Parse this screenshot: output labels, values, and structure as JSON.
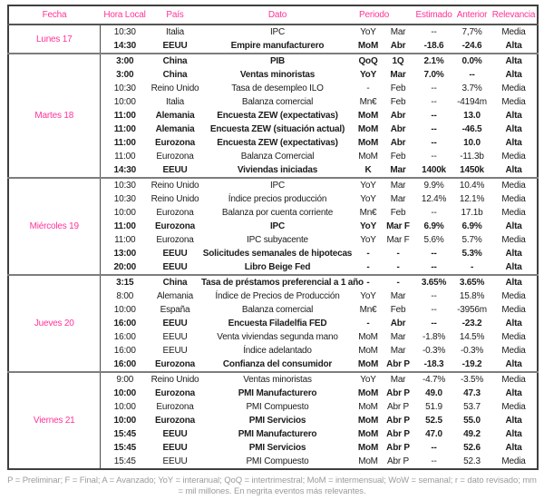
{
  "colors": {
    "accent_pink": "#ff3399",
    "outer_border": "#3f3f3f",
    "group_separator": "#7d7d7d",
    "footnote_gray": "#9b9b9b"
  },
  "header": {
    "fecha": "Fecha",
    "hora": "Hora Local",
    "pais": "País",
    "dato": "Dato",
    "periodo": "Periodo",
    "estimado": "Estimado",
    "anterior": "Anterior",
    "relevancia": "Relevancia"
  },
  "groups": [
    {
      "day": "Lunes 17",
      "rows": [
        {
          "hora": "10:30",
          "pais": "Italia",
          "dato": "IPC",
          "periodo": "YoY",
          "mes": "Mar",
          "estimado": "--",
          "anterior": "7,7%",
          "relevancia": "Media",
          "bold": false
        },
        {
          "hora": "14:30",
          "pais": "EEUU",
          "dato": "Empire manufacturero",
          "periodo": "MoM",
          "mes": "Abr",
          "estimado": "-18.6",
          "anterior": "-24.6",
          "relevancia": "Alta",
          "bold": true
        }
      ]
    },
    {
      "day": "Martes 18",
      "rows": [
        {
          "hora": "3:00",
          "pais": "China",
          "dato": "PIB",
          "periodo": "QoQ",
          "mes": "1Q",
          "estimado": "2.1%",
          "anterior": "0.0%",
          "relevancia": "Alta",
          "bold": true
        },
        {
          "hora": "3:00",
          "pais": "China",
          "dato": "Ventas minoristas",
          "periodo": "YoY",
          "mes": "Mar",
          "estimado": "7.0%",
          "anterior": "--",
          "relevancia": "Alta",
          "bold": true
        },
        {
          "hora": "10:30",
          "pais": "Reino Unido",
          "dato": "Tasa de desempleo ILO",
          "periodo": "-",
          "mes": "Feb",
          "estimado": "--",
          "anterior": "3.7%",
          "relevancia": "Media",
          "bold": false
        },
        {
          "hora": "10:00",
          "pais": "Italia",
          "dato": "Balanza comercial",
          "periodo": "Mn€",
          "mes": "Feb",
          "estimado": "--",
          "anterior": "-4194m",
          "relevancia": "Media",
          "bold": false
        },
        {
          "hora": "11:00",
          "pais": "Alemania",
          "dato": "Encuesta ZEW (expectativas)",
          "periodo": "MoM",
          "mes": "Abr",
          "estimado": "--",
          "anterior": "13.0",
          "relevancia": "Alta",
          "bold": true
        },
        {
          "hora": "11:00",
          "pais": "Alemania",
          "dato": "Encuesta ZEW (situación actual)",
          "periodo": "MoM",
          "mes": "Abr",
          "estimado": "--",
          "anterior": "-46.5",
          "relevancia": "Alta",
          "bold": true
        },
        {
          "hora": "11:00",
          "pais": "Eurozona",
          "dato": "Encuesta ZEW (expectativas)",
          "periodo": "MoM",
          "mes": "Abr",
          "estimado": "--",
          "anterior": "10.0",
          "relevancia": "Alta",
          "bold": true
        },
        {
          "hora": "11:00",
          "pais": "Eurozona",
          "dato": "Balanza Comercial",
          "periodo": "MoM",
          "mes": "Feb",
          "estimado": "--",
          "anterior": "-11.3b",
          "relevancia": "Media",
          "bold": false
        },
        {
          "hora": "14:30",
          "pais": "EEUU",
          "dato": "Viviendas iniciadas",
          "periodo": "K",
          "mes": "Mar",
          "estimado": "1400k",
          "anterior": "1450k",
          "relevancia": "Alta",
          "bold": true
        }
      ]
    },
    {
      "day": "Miércoles 19",
      "rows": [
        {
          "hora": "10:30",
          "pais": "Reino Unido",
          "dato": "IPC",
          "periodo": "YoY",
          "mes": "Mar",
          "estimado": "9.9%",
          "anterior": "10.4%",
          "relevancia": "Media",
          "bold": false
        },
        {
          "hora": "10:30",
          "pais": "Reino Unido",
          "dato": "Índice precios producción",
          "periodo": "YoY",
          "mes": "Mar",
          "estimado": "12.4%",
          "anterior": "12.1%",
          "relevancia": "Media",
          "bold": false
        },
        {
          "hora": "10:00",
          "pais": "Eurozona",
          "dato": "Balanza por cuenta corriente",
          "periodo": "Mn€",
          "mes": "Feb",
          "estimado": "--",
          "anterior": "17.1b",
          "relevancia": "Media",
          "bold": false
        },
        {
          "hora": "11:00",
          "pais": "Eurozona",
          "dato": "IPC",
          "periodo": "YoY",
          "mes": "Mar F",
          "estimado": "6.9%",
          "anterior": "6.9%",
          "relevancia": "Alta",
          "bold": true
        },
        {
          "hora": "11:00",
          "pais": "Eurozona",
          "dato": "IPC subyacente",
          "periodo": "YoY",
          "mes": "Mar F",
          "estimado": "5.6%",
          "anterior": "5.7%",
          "relevancia": "Media",
          "bold": false
        },
        {
          "hora": "13:00",
          "pais": "EEUU",
          "dato": "Solicitudes semanales de hipotecas",
          "periodo": "-",
          "mes": "-",
          "estimado": "--",
          "anterior": "5.3%",
          "relevancia": "Alta",
          "bold": true
        },
        {
          "hora": "20:00",
          "pais": "EEUU",
          "dato": "Libro Beige Fed",
          "periodo": "-",
          "mes": "-",
          "estimado": "--",
          "anterior": "-",
          "relevancia": "Alta",
          "bold": true
        }
      ]
    },
    {
      "day": "Jueves 20",
      "rows": [
        {
          "hora": "3:15",
          "pais": "China",
          "dato": "Tasa de préstamos preferencial a 1 año",
          "periodo": "-",
          "mes": "-",
          "estimado": "3.65%",
          "anterior": "3.65%",
          "relevancia": "Alta",
          "bold": true
        },
        {
          "hora": "8:00",
          "pais": "Alemania",
          "dato": "Índice de Precios de Producción",
          "periodo": "YoY",
          "mes": "Mar",
          "estimado": "--",
          "anterior": "15.8%",
          "relevancia": "Media",
          "bold": false
        },
        {
          "hora": "10:00",
          "pais": "España",
          "dato": "Balanza comercial",
          "periodo": "Mn€",
          "mes": "Feb",
          "estimado": "--",
          "anterior": "-3956m",
          "relevancia": "Media",
          "bold": false
        },
        {
          "hora": "16:00",
          "pais": "EEUU",
          "dato": "Encuesta Filadelfia FED",
          "periodo": "-",
          "mes": "Abr",
          "estimado": "--",
          "anterior": "-23.2",
          "relevancia": "Alta",
          "bold": true
        },
        {
          "hora": "16:00",
          "pais": "EEUU",
          "dato": "Venta viviendas segunda mano",
          "periodo": "MoM",
          "mes": "Mar",
          "estimado": "-1.8%",
          "anterior": "14.5%",
          "relevancia": "Media",
          "bold": false
        },
        {
          "hora": "16:00",
          "pais": "EEUU",
          "dato": "Índice adelantado",
          "periodo": "MoM",
          "mes": "Mar",
          "estimado": "-0.3%",
          "anterior": "-0.3%",
          "relevancia": "Media",
          "bold": false
        },
        {
          "hora": "16:00",
          "pais": "Eurozona",
          "dato": "Confianza del consumidor",
          "periodo": "MoM",
          "mes": "Abr P",
          "estimado": "-18.3",
          "anterior": "-19.2",
          "relevancia": "Alta",
          "bold": true
        }
      ]
    },
    {
      "day": "Viernes 21",
      "rows": [
        {
          "hora": "9:00",
          "pais": "Reino Unido",
          "dato": "Ventas minoristas",
          "periodo": "YoY",
          "mes": "Mar",
          "estimado": "-4.7%",
          "anterior": "-3.5%",
          "relevancia": "Media",
          "bold": false
        },
        {
          "hora": "10:00",
          "pais": "Eurozona",
          "dato": "PMI Manufacturero",
          "periodo": "MoM",
          "mes": "Abr P",
          "estimado": "49.0",
          "anterior": "47.3",
          "relevancia": "Alta",
          "bold": true
        },
        {
          "hora": "10:00",
          "pais": "Eurozona",
          "dato": "PMI Compuesto",
          "periodo": "MoM",
          "mes": "Abr P",
          "estimado": "51.9",
          "anterior": "53.7",
          "relevancia": "Media",
          "bold": false
        },
        {
          "hora": "10:00",
          "pais": "Eurozona",
          "dato": "PMI Servicios",
          "periodo": "MoM",
          "mes": "Abr P",
          "estimado": "52.5",
          "anterior": "55.0",
          "relevancia": "Alta",
          "bold": true
        },
        {
          "hora": "15:45",
          "pais": "EEUU",
          "dato": "PMI Manufacturero",
          "periodo": "MoM",
          "mes": "Abr P",
          "estimado": "47.0",
          "anterior": "49.2",
          "relevancia": "Alta",
          "bold": true
        },
        {
          "hora": "15:45",
          "pais": "EEUU",
          "dato": "PMI Servicios",
          "periodo": "MoM",
          "mes": "Abr P",
          "estimado": "--",
          "anterior": "52.6",
          "relevancia": "Alta",
          "bold": true
        },
        {
          "hora": "15:45",
          "pais": "EEUU",
          "dato": "PMI Compuesto",
          "periodo": "MoM",
          "mes": "Abr P",
          "estimado": "--",
          "anterior": "52.3",
          "relevancia": "Media",
          "bold": false
        }
      ]
    }
  ],
  "footnote": "P = Preliminar; F = Final; A = Avanzado; YoY = interanual; QoQ = intertrimestral; MoM = intermensual; WoW = semanal;  r = dato revisado; mm = mil millones. En negrita eventos más relevantes."
}
